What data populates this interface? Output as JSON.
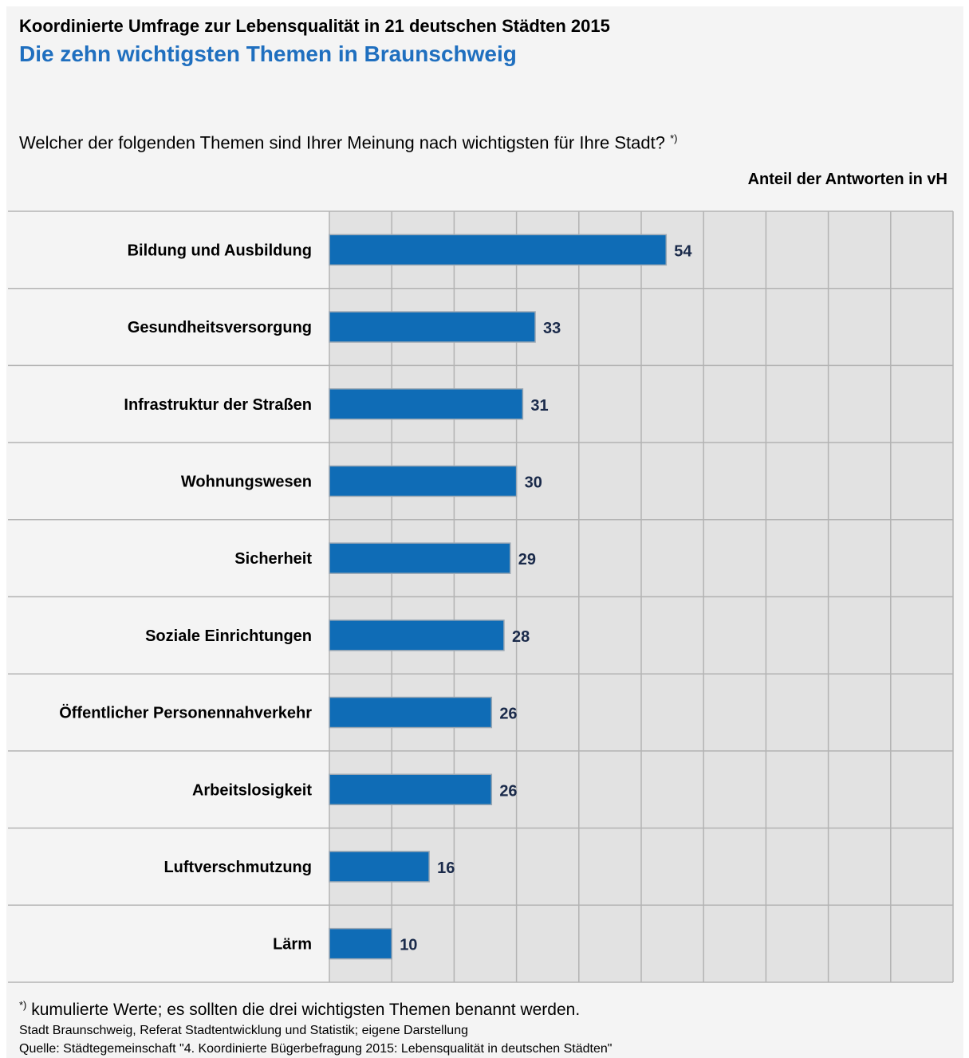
{
  "header": {
    "title": "Koordinierte Umfrage zur Lebensqualität in 21 deutschen Städten 2015",
    "subtitle": "Die zehn wichtigsten Themen in Braunschweig",
    "question": "Welcher der folgenden Themen sind Ihrer Meinung nach wichtigsten für Ihre Stadt?",
    "question_mark": "*)",
    "unit": "Anteil der Antworten in vH"
  },
  "colors": {
    "bar": "#0f6cb6",
    "bar_border": "#9aa7b3",
    "value_label": "#1a2a4a",
    "plot_bg": "#e2e2e2",
    "grid": "#b3b3b3",
    "title_accent": "#1f6fbf"
  },
  "chart_data": {
    "type": "bar",
    "orientation": "horizontal",
    "categories": [
      "Bildung und Ausbildung",
      "Gesundheitsversorgung",
      "Infrastruktur der Straßen",
      "Wohnungswesen",
      "Sicherheit",
      "Soziale Einrichtungen",
      "Öffentlicher Personennahverkehr",
      "Arbeitslosigkeit",
      "Luftverschmutzung",
      "Lärm"
    ],
    "values": [
      54,
      33,
      31,
      30,
      29,
      28,
      26,
      26,
      16,
      10
    ],
    "xlim": [
      0,
      100
    ],
    "grid_step": 10,
    "grid": true,
    "data_labels": true
  },
  "footer": {
    "footnote_mark": "*)",
    "footnote": "kumulierte Werte; es sollten die drei wichtigsten Themen benannt werden.",
    "credit": "Stadt Braunschweig, Referat Stadtentwicklung und Statistik; eigene Darstellung",
    "source": "Quelle: Städtegemeinschaft \"4. Koordinierte Bügerbefragung 2015: Lebensqualität in deutschen Städten\""
  }
}
